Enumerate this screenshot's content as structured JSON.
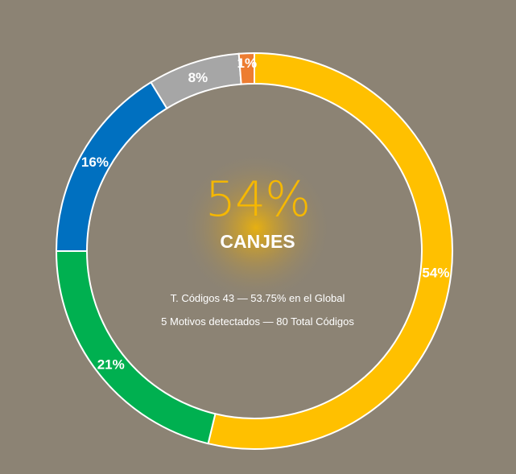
{
  "chart_data": {
    "type": "pie",
    "style": "donut",
    "center_value": "54%",
    "center_label": "CANJES",
    "info_lines": [
      "T. Códigos 43 — 53.75% en el Global",
      "5 Motivos detectados — 80 Total Códigos"
    ],
    "slices": [
      {
        "label": "54%",
        "value": 53.75,
        "color": "#ffc000"
      },
      {
        "label": "21%",
        "value": 21.25,
        "color": "#00b050"
      },
      {
        "label": "16%",
        "value": 16.25,
        "color": "#0070c0"
      },
      {
        "label": "8%",
        "value": 7.5,
        "color": "#a6a6a6"
      },
      {
        "label": "1%",
        "value": 1.25,
        "color": "#ed7d31"
      }
    ],
    "background_color": "#8c8374",
    "center_glow_color": "#f6b800"
  }
}
